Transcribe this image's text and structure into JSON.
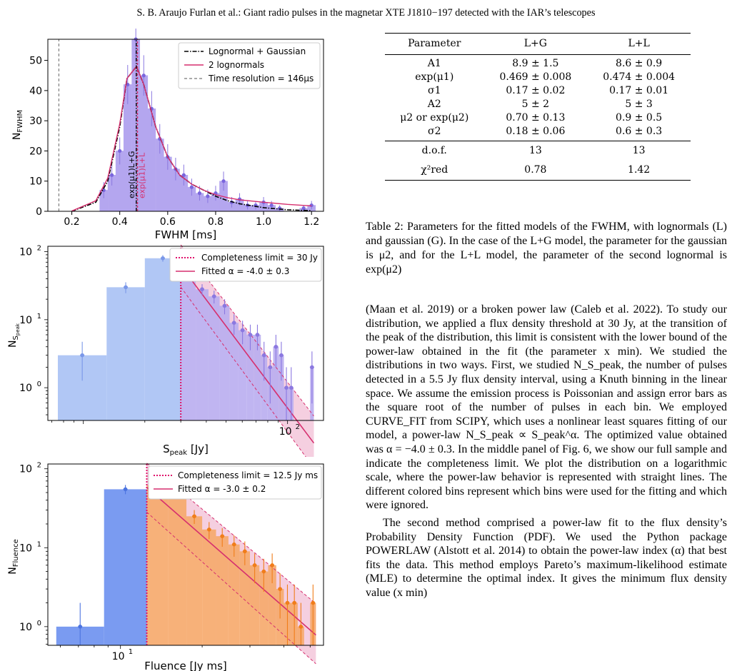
{
  "header": "S. B. Araujo Furlan  et al.: Giant radio pulses in the magnetar XTE J1810−197 detected with the IAR’s telescopes",
  "chart_data": [
    {
      "type": "bar",
      "xlabel": "FWHM [ms]",
      "ylabel": "N_FWHM",
      "xlim": [
        0.1,
        1.25
      ],
      "ylim": [
        0,
        57
      ],
      "xticks": [
        0.2,
        0.4,
        0.6,
        0.8,
        1.0,
        1.2
      ],
      "yticks": [
        0,
        10,
        20,
        30,
        40,
        50
      ],
      "bin_width": 0.0333,
      "bins_x": [
        0.333,
        0.367,
        0.4,
        0.433,
        0.467,
        0.5,
        0.533,
        0.567,
        0.6,
        0.633,
        0.667,
        0.7,
        0.733,
        0.767,
        0.8,
        0.833,
        0.867,
        0.9,
        0.933,
        0.967,
        1.0,
        1.033,
        1.067,
        1.1,
        1.133,
        1.167,
        1.2
      ],
      "bins_y": [
        7,
        12,
        20,
        42,
        57,
        45,
        34,
        24,
        18,
        14,
        12,
        8,
        6,
        5,
        6,
        10,
        3,
        4,
        2,
        2,
        3,
        2,
        1,
        0,
        0,
        1,
        2
      ],
      "series": [
        {
          "name": "Lognormal + Gaussian",
          "x": [
            0.2,
            0.3,
            0.35,
            0.4,
            0.43,
            0.47,
            0.5,
            0.55,
            0.6,
            0.65,
            0.7,
            0.75,
            0.8,
            0.85,
            0.9,
            1.0,
            1.1,
            1.2
          ],
          "y": [
            0,
            3,
            10,
            28,
            44,
            48,
            42,
            28,
            18,
            12,
            9,
            7,
            5,
            3.5,
            2.5,
            1.2,
            0.5,
            0.2
          ]
        },
        {
          "name": "2 lognormals",
          "x": [
            0.2,
            0.3,
            0.35,
            0.4,
            0.43,
            0.47,
            0.5,
            0.55,
            0.6,
            0.65,
            0.7,
            0.75,
            0.8,
            0.85,
            0.9,
            1.0,
            1.1,
            1.2
          ],
          "y": [
            0.1,
            3.5,
            11,
            29,
            44,
            48,
            42,
            28,
            18,
            12,
            9,
            7,
            5.5,
            4.5,
            3.8,
            3,
            2.3,
            1.8
          ]
        }
      ],
      "vlines": [
        {
          "name": "Time resolution = 146μs",
          "x": 0.146
        },
        {
          "label": "exp(μ1)L+G",
          "x": 0.469
        },
        {
          "label": "exp(μ1)L+L",
          "x": 0.474
        }
      ],
      "legend": "top-right"
    },
    {
      "type": "bar",
      "xscale": "log",
      "yscale": "log",
      "xlabel": "S_peak [Jy]",
      "ylabel": "N_S_peak",
      "xlim": [
        6.7,
        150
      ],
      "ylim": [
        0.33,
        120
      ],
      "xticks": [
        100
      ],
      "yticks": [
        1,
        10,
        100
      ],
      "bins_lo": [
        7.5,
        13,
        20,
        30,
        35.5,
        41,
        46.5,
        52,
        57.5,
        63,
        68.5,
        74,
        79.5,
        85,
        90.5,
        96,
        101.5,
        107,
        112.5,
        118,
        123.5,
        129
      ],
      "bins_hi": [
        13,
        20,
        30,
        35.5,
        41,
        46.5,
        52,
        57.5,
        63,
        68.5,
        74,
        79.5,
        85,
        90.5,
        96,
        101.5,
        107,
        112.5,
        118,
        123.5,
        129,
        134.5
      ],
      "bins_y": [
        3,
        30,
        80,
        50,
        28,
        22,
        16,
        9,
        7,
        6,
        6,
        3,
        2,
        4,
        3,
        1,
        1,
        0,
        0,
        0,
        0,
        2
      ],
      "completeness_limit": 30,
      "fit_alpha": "-4.0 ± 0.3",
      "legend_entries": [
        "Completeness limit = 30 Jy",
        "Fitted α = -4.0 ± 0.3"
      ],
      "legend": "top-right"
    },
    {
      "type": "bar",
      "xscale": "log",
      "yscale": "log",
      "xlabel": "Fluence [Jy ms]",
      "ylabel": "N_Fluence",
      "xlim": [
        5.4,
        56
      ],
      "ylim": [
        0.58,
        115
      ],
      "xticks": [
        10
      ],
      "yticks": [
        1,
        10,
        100
      ],
      "bins_lo": [
        5.8,
        8.7,
        12.5,
        15,
        17.5,
        20,
        22.5,
        25,
        27.5,
        30,
        32.5,
        35,
        37.5,
        40,
        42.5,
        45,
        47.5,
        50
      ],
      "bins_hi": [
        8.7,
        12.5,
        15,
        17.5,
        20,
        22.5,
        25,
        27.5,
        30,
        32.5,
        35,
        37.5,
        40,
        42.5,
        45,
        47.5,
        50,
        52.5
      ],
      "bins_y": [
        1,
        55,
        62,
        48,
        25,
        17,
        14,
        11,
        9,
        6,
        5,
        6,
        3,
        2,
        2,
        1,
        0,
        2
      ],
      "completeness_limit": 12.5,
      "fit_alpha": "-3.0 ± 0.2",
      "legend_entries": [
        "Completeness limit = 12.5 Jy ms",
        "Fitted α = -3.0 ± 0.2"
      ],
      "legend": "top-right"
    }
  ],
  "table": {
    "columns": [
      "Parameter",
      "L+G",
      "L+L"
    ],
    "rows": [
      [
        "A1",
        "8.9 ± 1.5",
        "8.6 ± 0.9"
      ],
      [
        "exp(μ1)",
        "0.469 ± 0.008",
        "0.474 ± 0.004"
      ],
      [
        "σ1",
        "0.17 ± 0.02",
        "0.17 ± 0.01"
      ],
      [
        "A2",
        "5 ± 2",
        "5 ± 3"
      ],
      [
        "μ2 or exp(μ2)",
        "0.70 ± 0.13",
        "0.9 ± 0.5"
      ],
      [
        "σ2",
        "0.18 ± 0.06",
        "0.6 ± 0.3"
      ]
    ],
    "footer_rows": [
      [
        "d.o.f.",
        "13",
        "13"
      ],
      [
        "χ²red",
        "0.78",
        "1.42"
      ]
    ]
  },
  "caption": "Table 2: Parameters for the fitted models of the FWHM, with lognormals (L) and gaussian (G). In the case of the L+G model, the parameter for the gaussian is μ2, and for the L+L model, the parameter of the second lognormal is exp(μ2)",
  "body": [
    "(Maan et al. 2019) or a broken power law (Caleb et al. 2022). To study our distribution, we applied a flux density threshold at 30 Jy, at the transition of the peak of the distribution, this limit is consistent with the lower bound of the power-law obtained in the fit (the parameter x min). We studied the distributions in two ways. First, we studied N_S_peak, the number of pulses detected in a 5.5 Jy flux density interval, using a Knuth binning in the linear space. We assume the emission process is Poissonian and assign error bars as the square root of the number of pulses in each bin. We employed CURVE_FIT from SCIPY, which uses a nonlinear least squares fitting of our model, a power-law N_S_peak ∝ S_peak^α. The optimized value obtained was α = −4.0 ± 0.3. In the middle panel of Fig. 6, we show our full sample and indicate the completeness limit. We plot the distribution on a logarithmic scale, where the power-law behavior is represented with straight lines. The different colored bins represent which bins were used for the fitting and which were ignored.",
    "The second method comprised a power-law fit to the flux density’s Probability Density Function (PDF). We used the Python package POWERLAW (Alstott et al. 2014) to obtain the power-law index (α) that best fits the data. This method employs Pareto’s maximum-likelihood estimate (MLE) to determine the optimal index. It gives the minimum flux density value (x min)"
  ]
}
